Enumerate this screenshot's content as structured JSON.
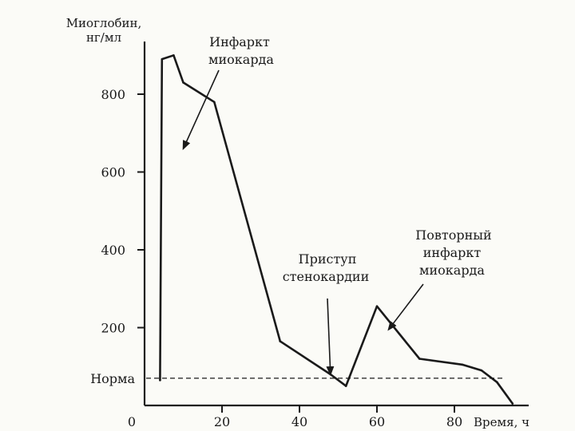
{
  "chart_data": {
    "type": "line",
    "title": "",
    "ylabel": [
      "Миоглобин,",
      "нг/мл"
    ],
    "xlabel": "Время, ч",
    "xlim": [
      0,
      100
    ],
    "ylim": [
      0,
      950
    ],
    "y_ticks": [
      800,
      600,
      400,
      200
    ],
    "x_ticks": [
      0,
      20,
      40,
      60,
      80
    ],
    "grid": false,
    "series": [
      {
        "name": "",
        "x": [
          4,
          4.5,
          7.5,
          10,
          18,
          35,
          48,
          52,
          60,
          71,
          82,
          87,
          91,
          95
        ],
        "y": [
          65,
          890,
          900,
          830,
          780,
          165,
          80,
          50,
          255,
          120,
          105,
          90,
          60,
          5
        ]
      }
    ],
    "reference_line": {
      "label": "Норма",
      "y": 70,
      "style": "dashed"
    },
    "annotations": [
      {
        "lines": [
          "Инфаркт",
          "миокарда"
        ],
        "arrow_to": {
          "x": 10,
          "y": 660
        }
      },
      {
        "lines": [
          "Приступ",
          "стенокардии"
        ],
        "arrow_to": {
          "x": 48,
          "y": 80
        }
      },
      {
        "lines": [
          "Повторный",
          "инфаркт",
          "миокарда"
        ],
        "arrow_to": {
          "x": 63,
          "y": 195
        }
      }
    ]
  }
}
